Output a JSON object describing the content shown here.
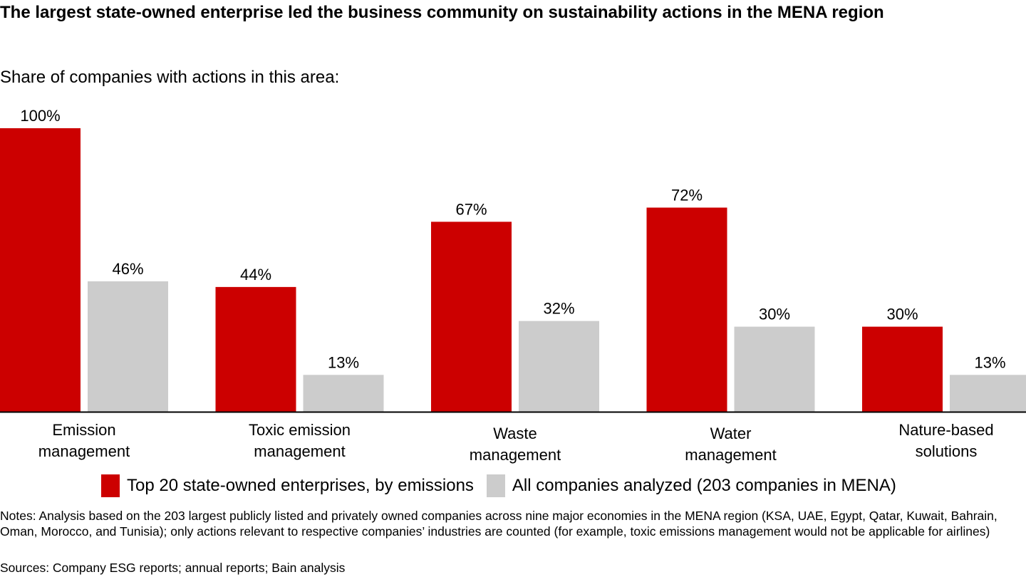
{
  "title": "The largest state-owned enterprise led the business community on sustainability actions in the MENA region",
  "subtitle": "Share of companies with actions in this area:",
  "colors": {
    "series1": "#cc0000",
    "series2": "#cccccc"
  },
  "chart_data": {
    "type": "bar",
    "categories": [
      [
        "Emission",
        "management"
      ],
      [
        "Toxic emission",
        "management"
      ],
      [
        "Waste",
        "management"
      ],
      [
        "Water",
        "management"
      ],
      [
        "Nature-based",
        "solutions"
      ]
    ],
    "series": [
      {
        "name": "Top 20 state-owned enterprises, by emissions",
        "values": [
          100,
          44,
          67,
          72,
          30
        ],
        "labels": [
          "100%",
          "44%",
          "67%",
          "72%",
          "30%"
        ]
      },
      {
        "name": "All companies analyzed (203 companies in MENA)",
        "values": [
          46,
          13,
          32,
          30,
          13
        ],
        "labels": [
          "46%",
          "13%",
          "32%",
          "30%",
          "13%"
        ]
      }
    ],
    "ylim": [
      0,
      100
    ],
    "grid": false,
    "legend": "bottom"
  },
  "notes": "Notes: Analysis based on the 203 largest publicly listed and privately owned companies across nine major economies in the MENA region (KSA, UAE, Egypt, Qatar, Kuwait, Bahrain, Oman, Morocco, and Tunisia); only actions relevant to respective companies’ industries are counted (for example, toxic emissions management would not be applicable for airlines)",
  "sources": "Sources: Company ESG reports; annual reports; Bain analysis"
}
